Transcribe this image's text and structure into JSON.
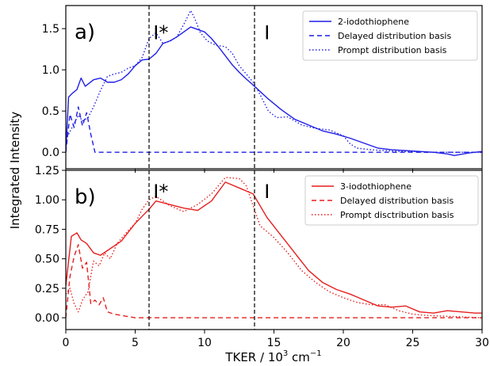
{
  "xlabel_main": "TKER / 10",
  "xlabel_sup": "3",
  "xlabel_unit": " cm",
  "xlabel_unit_sup": "−1",
  "ylabel": "Integrated Intensity",
  "vlines": [
    6.0,
    13.6
  ],
  "colors": {
    "top": "#1f1fe6",
    "bottom": "#e61f1f"
  },
  "chart_data": [
    {
      "type": "line",
      "panel_label": "a)",
      "annotations": [
        {
          "text": "I*",
          "x": 6.3,
          "y": 1.45
        },
        {
          "text": "I",
          "x": 14.3,
          "y": 1.45
        }
      ],
      "xlim": [
        0,
        30
      ],
      "ylim": [
        -0.2,
        1.78
      ],
      "xticks": [
        0,
        5,
        10,
        15,
        20,
        25,
        30
      ],
      "yticks": [
        0.0,
        0.5,
        1.0,
        1.5
      ],
      "ytick_labels": [
        "0.0",
        "0.5",
        "1.0",
        "1.5"
      ],
      "series": [
        {
          "name": "2-iodothiophene",
          "style": "solid",
          "x": [
            0,
            0.2,
            0.5,
            0.8,
            1.1,
            1.4,
            1.7,
            2.0,
            2.5,
            3.0,
            3.5,
            4.0,
            4.5,
            5.0,
            5.5,
            6.0,
            6.5,
            7.0,
            7.5,
            8.0,
            8.5,
            9.0,
            9.5,
            10.0,
            10.5,
            11.0,
            11.5,
            12.0,
            12.5,
            13.0,
            13.6,
            14.5,
            15.5,
            16.5,
            17.5,
            18.5,
            19.5,
            20.5,
            21.5,
            22.5,
            23.5,
            24.5,
            25.5,
            26.5,
            27.5,
            28.0,
            29.0,
            30.0
          ],
          "y": [
            0.0,
            0.67,
            0.72,
            0.76,
            0.9,
            0.8,
            0.84,
            0.88,
            0.9,
            0.85,
            0.85,
            0.88,
            0.95,
            1.05,
            1.12,
            1.13,
            1.2,
            1.32,
            1.35,
            1.4,
            1.46,
            1.52,
            1.49,
            1.46,
            1.38,
            1.28,
            1.17,
            1.06,
            0.97,
            0.89,
            0.8,
            0.66,
            0.52,
            0.4,
            0.33,
            0.26,
            0.22,
            0.17,
            0.11,
            0.05,
            0.03,
            0.02,
            0.01,
            0.0,
            -0.02,
            -0.04,
            -0.01,
            0.01
          ]
        },
        {
          "name": "Delayed distribution basis",
          "style": "dashed",
          "x": [
            0,
            0.3,
            0.6,
            0.9,
            1.2,
            1.5,
            1.8,
            2.1,
            5,
            10,
            15,
            20,
            25,
            30
          ],
          "y": [
            0.0,
            0.46,
            0.3,
            0.55,
            0.32,
            0.48,
            0.22,
            0.0,
            0.0,
            0.0,
            0.0,
            0.0,
            0.0,
            0.0
          ]
        },
        {
          "name": "Prompt distribution basis",
          "style": "dotted",
          "x": [
            0,
            0.3,
            0.6,
            0.9,
            1.2,
            1.6,
            2.0,
            2.5,
            3.0,
            3.5,
            4.0,
            4.5,
            5.0,
            5.5,
            6.0,
            6.5,
            7.0,
            7.5,
            8.0,
            8.5,
            9.0,
            9.3,
            9.7,
            10.2,
            10.8,
            11.5,
            12.0,
            12.5,
            13.0,
            13.5,
            14.0,
            14.6,
            15.2,
            16.0,
            17.0,
            18.0,
            19.0,
            20.0,
            20.5,
            21.0,
            22.0,
            23.0,
            24.0,
            25.0,
            26.0,
            27.0,
            28.0,
            29.0,
            30.0
          ],
          "y": [
            0.15,
            0.25,
            0.35,
            0.45,
            0.38,
            0.42,
            0.55,
            0.75,
            0.92,
            0.95,
            0.97,
            1.02,
            1.05,
            1.15,
            1.38,
            1.45,
            1.32,
            1.35,
            1.4,
            1.55,
            1.72,
            1.62,
            1.45,
            1.35,
            1.3,
            1.28,
            1.2,
            1.05,
            0.95,
            0.85,
            0.7,
            0.5,
            0.42,
            0.43,
            0.33,
            0.29,
            0.27,
            0.2,
            0.1,
            0.05,
            0.03,
            0.02,
            0.01,
            0.01,
            0.0,
            0.0,
            0.0,
            0.0,
            0.0
          ]
        }
      ]
    },
    {
      "type": "line",
      "panel_label": "b)",
      "annotations": [
        {
          "text": "I*",
          "x": 6.3,
          "y": 1.07
        },
        {
          "text": "I",
          "x": 14.3,
          "y": 1.07
        }
      ],
      "xlim": [
        0,
        30
      ],
      "ylim": [
        -0.1,
        1.25
      ],
      "xticks": [
        0,
        5,
        10,
        15,
        20,
        25,
        30
      ],
      "xtick_labels": [
        "0",
        "5",
        "10",
        "15",
        "20",
        "25",
        "30"
      ],
      "yticks": [
        0.0,
        0.25,
        0.5,
        0.75,
        1.0,
        1.25
      ],
      "ytick_labels": [
        "0.00",
        "0.25",
        "0.50",
        "0.75",
        "1.00",
        "1.25"
      ],
      "series": [
        {
          "name": "3-iodothiophene",
          "style": "solid",
          "x": [
            0,
            0.4,
            0.8,
            1.1,
            1.5,
            2.0,
            2.5,
            3.0,
            4.0,
            5.0,
            5.5,
            6.0,
            6.5,
            7.5,
            8.5,
            9.5,
            10.5,
            11.5,
            12.5,
            13.5,
            14.5,
            15.5,
            16.5,
            17.5,
            18.5,
            19.5,
            20.5,
            21.5,
            22.5,
            23.5,
            24.5,
            25.5,
            26.5,
            27.5,
            28.5,
            29.5,
            30.0
          ],
          "y": [
            0.27,
            0.69,
            0.72,
            0.66,
            0.63,
            0.55,
            0.53,
            0.57,
            0.65,
            0.8,
            0.86,
            0.92,
            0.99,
            0.96,
            0.93,
            0.91,
            0.99,
            1.15,
            1.1,
            1.05,
            0.85,
            0.7,
            0.55,
            0.4,
            0.3,
            0.24,
            0.2,
            0.15,
            0.1,
            0.09,
            0.1,
            0.05,
            0.04,
            0.06,
            0.05,
            0.04,
            0.04
          ]
        },
        {
          "name": "Delayed distribution basis",
          "style": "dashed",
          "x": [
            0,
            0.3,
            0.6,
            0.9,
            1.2,
            1.5,
            1.8,
            2.1,
            2.4,
            2.7,
            3.0,
            3.5,
            4.0,
            5.0,
            10,
            15,
            20,
            25,
            30
          ],
          "y": [
            0.0,
            0.35,
            0.52,
            0.62,
            0.42,
            0.47,
            0.12,
            0.15,
            0.11,
            0.17,
            0.05,
            0.03,
            0.02,
            0.0,
            0.0,
            0.0,
            0.0,
            0.0,
            0.0
          ]
        },
        {
          "name": "Prompt disctribution basis",
          "style": "dotted",
          "x": [
            0,
            0.3,
            0.6,
            0.9,
            1.2,
            1.6,
            2.0,
            2.4,
            2.8,
            3.2,
            3.7,
            4.5,
            5.0,
            5.5,
            6.0,
            6.5,
            7.5,
            8.5,
            9.5,
            10.5,
            11.5,
            12.5,
            13.0,
            13.5,
            14.0,
            15.0,
            16.0,
            17.0,
            18.0,
            19.0,
            20.0,
            21.0,
            22.0,
            23.0,
            24.0,
            25.0,
            26.0,
            28.0,
            30.0
          ],
          "y": [
            0.2,
            0.25,
            0.12,
            0.05,
            0.15,
            0.22,
            0.48,
            0.44,
            0.55,
            0.5,
            0.63,
            0.74,
            0.8,
            0.92,
            1.0,
            1.03,
            0.95,
            0.9,
            0.96,
            1.05,
            1.19,
            1.18,
            1.12,
            0.95,
            0.78,
            0.68,
            0.55,
            0.4,
            0.3,
            0.22,
            0.17,
            0.13,
            0.11,
            0.11,
            0.06,
            0.03,
            0.02,
            0.01,
            0.0
          ]
        }
      ]
    }
  ]
}
